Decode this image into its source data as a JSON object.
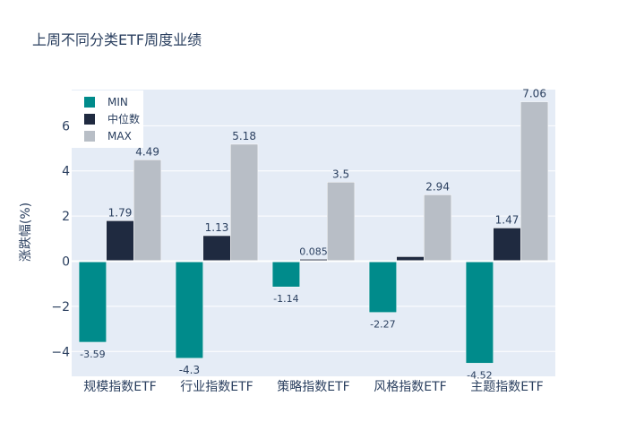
{
  "chart_data": {
    "type": "bar",
    "title": "上周不同分类ETF周度业绩",
    "xlabel": "",
    "ylabel": "涨跌幅(%)",
    "ylim": [
      -5.1,
      7.6
    ],
    "yticks": [
      -4,
      -2,
      0,
      2,
      4,
      6
    ],
    "ytick_labels": [
      "−4",
      "−2",
      "0",
      "2",
      "4",
      "6"
    ],
    "categories": [
      "规模指数ETF",
      "行业指数ETF",
      "策略指数ETF",
      "风格指数ETF",
      "主题指数ETF"
    ],
    "series": [
      {
        "name": "MIN",
        "color": "#008B8B",
        "values": [
          -3.59,
          -4.3,
          -1.14,
          -2.27,
          -4.52
        ],
        "labels": [
          "-3.59",
          "-4.3",
          "-1.14",
          "-2.27",
          "-4.52"
        ]
      },
      {
        "name": "中位数",
        "color": "#1F2A40",
        "values": [
          1.79,
          1.13,
          0.085,
          0.2,
          1.47
        ],
        "labels": [
          "1.79",
          "1.13",
          "0.085",
          "",
          "1.47"
        ]
      },
      {
        "name": "MAX",
        "color": "#B8BEC6",
        "values": [
          4.49,
          5.18,
          3.5,
          2.94,
          7.06
        ],
        "labels": [
          "4.49",
          "5.18",
          "3.5",
          "2.94",
          "7.06"
        ]
      }
    ],
    "legend_position": "top-left",
    "grid": true,
    "colors": {
      "plot_bg": "#E5ECF6",
      "grid": "#ffffff",
      "text": "#2A3F5F"
    }
  }
}
